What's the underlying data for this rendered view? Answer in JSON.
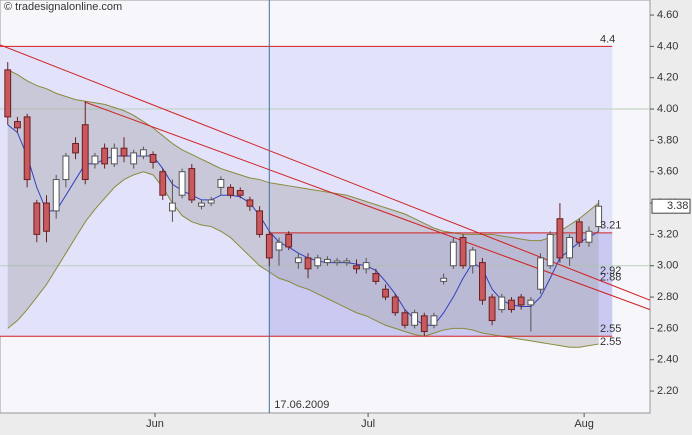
{
  "chart_data": {
    "type": "candlestick",
    "title": "© tradesignalonline.com",
    "open": [
      4.25,
      3.92,
      3.95,
      3.4,
      3.4,
      3.35,
      3.55,
      3.78,
      3.9,
      3.65,
      3.75,
      3.65,
      3.75,
      3.65,
      3.7,
      3.71,
      3.6,
      3.35,
      3.45,
      3.62,
      3.38,
      3.4,
      3.5,
      3.5,
      3.48,
      3.42,
      3.35,
      3.2,
      3.1,
      3.2,
      3.02,
      3.05,
      3.0,
      3.02,
      3.02,
      3.02,
      3.0,
      2.98,
      2.95,
      2.85,
      2.8,
      2.7,
      2.62,
      2.68,
      2.62,
      2.9,
      3.0,
      3.18,
      3.0,
      3.02,
      2.8,
      2.72,
      2.78,
      2.8,
      2.75,
      2.85,
      3.0,
      3.3,
      3.05,
      3.28,
      3.15,
      3.25
    ],
    "high": [
      4.3,
      3.95,
      3.97,
      3.42,
      3.45,
      3.58,
      3.72,
      3.82,
      4.05,
      3.72,
      3.78,
      3.78,
      3.82,
      3.74,
      3.76,
      3.73,
      3.62,
      3.55,
      3.62,
      3.65,
      3.42,
      3.44,
      3.57,
      3.52,
      3.5,
      3.44,
      3.38,
      3.22,
      3.18,
      3.22,
      3.08,
      3.08,
      3.07,
      3.06,
      3.05,
      3.05,
      3.04,
      3.05,
      2.98,
      2.88,
      2.82,
      2.72,
      2.72,
      2.7,
      2.7,
      2.95,
      3.18,
      3.2,
      3.12,
      3.05,
      2.82,
      2.82,
      2.8,
      2.82,
      2.8,
      3.08,
      3.22,
      3.4,
      3.2,
      3.3,
      3.25,
      3.42
    ],
    "low": [
      3.9,
      3.85,
      3.5,
      3.15,
      3.15,
      3.3,
      3.5,
      3.68,
      3.52,
      3.62,
      3.62,
      3.63,
      3.66,
      3.62,
      3.68,
      3.62,
      3.42,
      3.28,
      3.43,
      3.4,
      3.36,
      3.38,
      3.45,
      3.43,
      3.43,
      3.35,
      3.18,
      3.0,
      3.0,
      3.1,
      2.98,
      2.92,
      2.98,
      3.0,
      3.0,
      3.0,
      2.95,
      2.95,
      2.88,
      2.78,
      2.68,
      2.6,
      2.6,
      2.55,
      2.6,
      2.88,
      2.98,
      2.98,
      2.95,
      2.75,
      2.62,
      2.7,
      2.7,
      2.72,
      2.58,
      2.82,
      2.98,
      3.02,
      3.0,
      3.12,
      3.12,
      3.22
    ],
    "close": [
      3.95,
      3.88,
      3.55,
      3.2,
      3.22,
      3.55,
      3.7,
      3.72,
      3.55,
      3.7,
      3.65,
      3.75,
      3.7,
      3.72,
      3.74,
      3.66,
      3.45,
      3.4,
      3.6,
      3.42,
      3.4,
      3.42,
      3.55,
      3.45,
      3.45,
      3.38,
      3.2,
      3.05,
      3.15,
      3.12,
      3.05,
      2.98,
      3.05,
      3.04,
      3.03,
      3.03,
      2.98,
      3.02,
      2.9,
      2.8,
      2.7,
      2.62,
      2.7,
      2.58,
      2.68,
      2.92,
      3.15,
      3.0,
      3.1,
      2.78,
      2.65,
      2.8,
      2.72,
      2.75,
      2.78,
      3.05,
      3.2,
      3.05,
      3.18,
      3.15,
      3.22,
      3.38
    ],
    "up_color": "#ffffff",
    "down_color": "#c8595f",
    "bands": [
      {
        "color": "#8a8a3a",
        "values": [
          4.25,
          4.22,
          4.18,
          4.15,
          4.13,
          4.1,
          4.08,
          4.06,
          4.05,
          4.04,
          4.03,
          4.01,
          3.99,
          3.96,
          3.92,
          3.88,
          3.83,
          3.78,
          3.74,
          3.71,
          3.68,
          3.65,
          3.62,
          3.6,
          3.58,
          3.56,
          3.55,
          3.53,
          3.52,
          3.51,
          3.5,
          3.49,
          3.48,
          3.47,
          3.46,
          3.45,
          3.43,
          3.41,
          3.39,
          3.37,
          3.35,
          3.33,
          3.3,
          3.27,
          3.24,
          3.22,
          3.21,
          3.2,
          3.2,
          3.2,
          3.2,
          3.19,
          3.18,
          3.17,
          3.16,
          3.16,
          3.18,
          3.22,
          3.26,
          3.3,
          3.35,
          3.4
        ]
      },
      {
        "color": "#8a8a3a",
        "values": [
          2.6,
          2.65,
          2.72,
          2.8,
          2.88,
          2.98,
          3.08,
          3.18,
          3.28,
          3.36,
          3.43,
          3.5,
          3.55,
          3.58,
          3.6,
          3.58,
          3.5,
          3.4,
          3.32,
          3.28,
          3.26,
          3.25,
          3.22,
          3.18,
          3.12,
          3.06,
          3.0,
          2.96,
          2.92,
          2.9,
          2.87,
          2.85,
          2.82,
          2.79,
          2.76,
          2.73,
          2.7,
          2.68,
          2.65,
          2.62,
          2.6,
          2.58,
          2.56,
          2.55,
          2.57,
          2.59,
          2.6,
          2.6,
          2.59,
          2.57,
          2.56,
          2.55,
          2.54,
          2.53,
          2.52,
          2.51,
          2.5,
          2.49,
          2.48,
          2.48,
          2.49,
          2.5
        ]
      }
    ],
    "band_fill": "#a8a8b0",
    "average": {
      "color": "#3040c0",
      "values": [
        3.9,
        3.85,
        3.7,
        3.5,
        3.35,
        3.35,
        3.45,
        3.55,
        3.65,
        3.65,
        3.68,
        3.7,
        3.7,
        3.7,
        3.7,
        3.7,
        3.62,
        3.52,
        3.48,
        3.45,
        3.42,
        3.42,
        3.45,
        3.45,
        3.44,
        3.4,
        3.32,
        3.22,
        3.15,
        3.12,
        3.08,
        3.05,
        3.03,
        3.02,
        3.02,
        3.02,
        3.01,
        3.0,
        2.97,
        2.9,
        2.82,
        2.72,
        2.66,
        2.62,
        2.62,
        2.7,
        2.8,
        2.92,
        3.02,
        2.98,
        2.85,
        2.78,
        2.75,
        2.74,
        2.74,
        2.8,
        2.92,
        3.05,
        3.1,
        3.15,
        3.18,
        3.22
      ]
    },
    "xlim": [
      -0.8,
      66.3
    ],
    "xticks": [
      {
        "value": 15.2,
        "label": "Jun"
      },
      {
        "value": 37.2,
        "label": "Jul"
      },
      {
        "value": 59.5,
        "label": "Aug"
      }
    ],
    "ylim": [
      2.06,
      4.696
    ],
    "yticks": [
      {
        "value": 2.2,
        "label": "2.20"
      },
      {
        "value": 2.4,
        "label": "2.40"
      },
      {
        "value": 2.6,
        "label": "2.60"
      },
      {
        "value": 2.8,
        "label": "2.80"
      },
      {
        "value": 3.0,
        "label": "3.00"
      },
      {
        "value": 3.2,
        "label": "3.20"
      },
      {
        "value": 3.4,
        "label": "3.40"
      },
      {
        "value": 3.6,
        "label": "3.60"
      },
      {
        "value": 3.8,
        "label": "3.80"
      },
      {
        "value": 4.0,
        "label": "4.00"
      },
      {
        "value": 4.2,
        "label": "4.20"
      },
      {
        "value": 4.4,
        "label": "4.40"
      },
      {
        "value": 4.6,
        "label": "4.60"
      }
    ],
    "reference_lines": [
      4.0,
      3.0
    ],
    "zone": {
      "x": [
        -0.8,
        62.4
      ],
      "y": [
        4.4,
        2.55
      ],
      "color": "#e2e2fb"
    },
    "inner_zone": {
      "x": [
        27,
        62.4
      ],
      "y": [
        3.21,
        2.55
      ],
      "color": "#c9c9f2"
    },
    "levels": [
      {
        "value": 4.4,
        "x": [
          -0.8,
          62.4
        ]
      },
      {
        "value": 3.21,
        "x": [
          27,
          62.4
        ]
      },
      {
        "value": 2.55,
        "x": [
          -0.8,
          62.4
        ]
      }
    ],
    "level_color": "#d02020",
    "trendlines": [
      {
        "x": [
          -0.8,
          66.3
        ],
        "y": [
          4.41,
          2.78
        ]
      },
      {
        "x": [
          7.95,
          66.3
        ],
        "y": [
          4.045,
          2.72
        ]
      }
    ],
    "right_labels": [
      4.4,
      3.21,
      2.92,
      2.88,
      2.55,
      2.55
    ],
    "marker": {
      "x": 27,
      "label": "17.06.2009",
      "color": "#4070a0"
    },
    "last_price": 3.38
  }
}
